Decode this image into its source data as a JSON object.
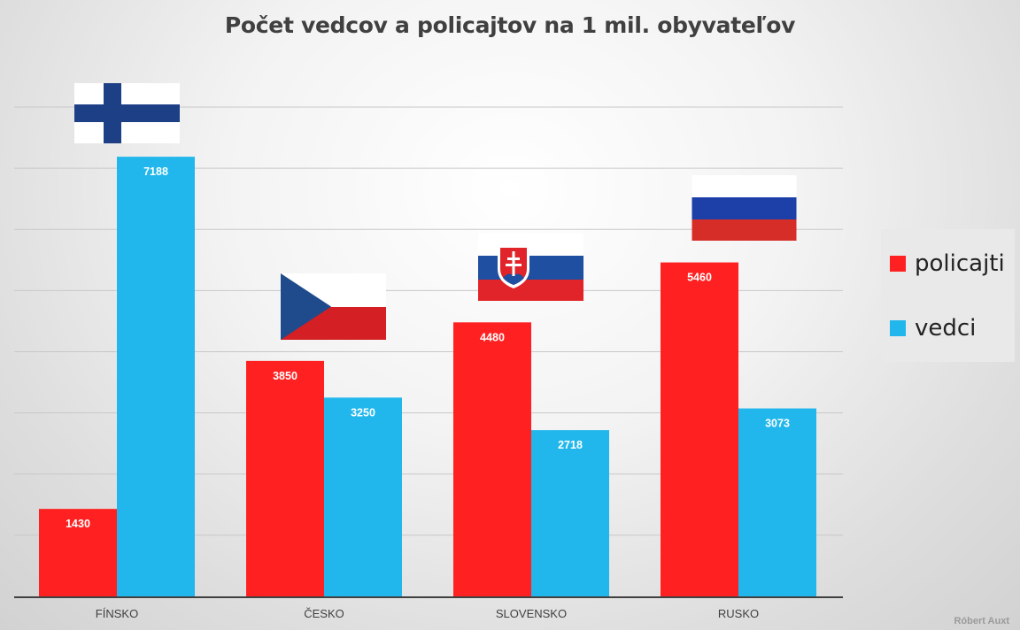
{
  "chart_data": {
    "type": "bar",
    "title": "Počet vedcov a policajtov na 1 mil. obyvateľov",
    "categories": [
      "FÍNSKO",
      "ČESKO",
      "SLOVENSKO",
      "RUSKO"
    ],
    "series": [
      {
        "name": "policajti",
        "values": [
          1430,
          3850,
          4480,
          5460
        ],
        "color": "#ff2121"
      },
      {
        "name": "vedci",
        "values": [
          7188,
          3250,
          2718,
          3073
        ],
        "color": "#21b7ec"
      }
    ],
    "ylim": [
      0,
      8000
    ],
    "xlabel": "",
    "ylabel": "",
    "grid": true,
    "legend_position": "right",
    "data_labels": true
  },
  "legend": {
    "item1": "policajti",
    "item2": "vedci"
  },
  "author": "Róbert Auxt",
  "flags": [
    "finland-flag",
    "czech-flag",
    "slovakia-flag",
    "russia-flag"
  ],
  "colors": {
    "policajti": "#ff2121",
    "vedci": "#21b7ec",
    "gridline": "#c8c8c8",
    "axis": "#404040"
  }
}
